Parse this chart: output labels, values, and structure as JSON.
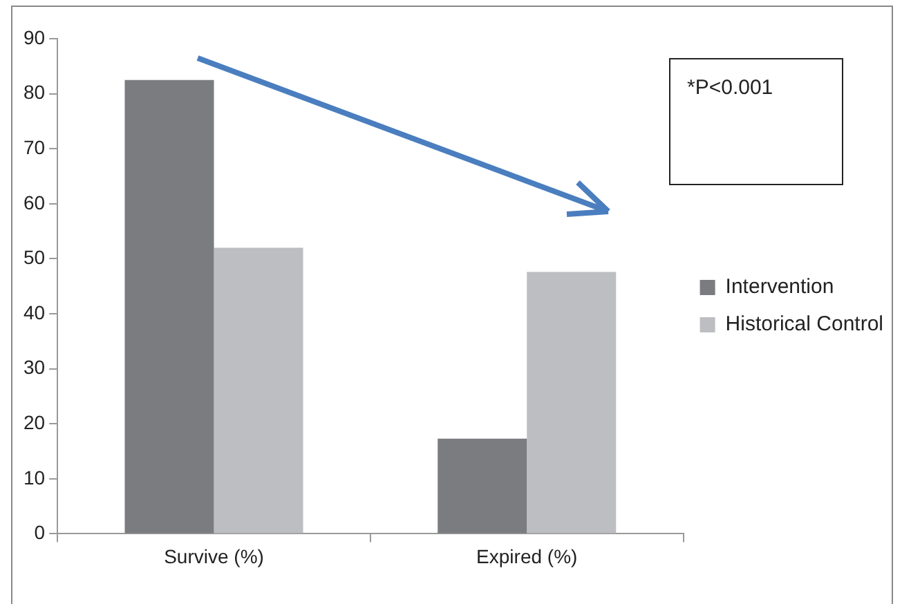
{
  "chart_data": {
    "type": "bar",
    "categories": [
      "Survive (%)",
      "Expired (%)"
    ],
    "series": [
      {
        "name": "Intervention",
        "color": "#7b7c80",
        "values": [
          82.5,
          17.3
        ]
      },
      {
        "name": "Historical Control",
        "color": "#bdbec2",
        "values": [
          52,
          47.6
        ]
      }
    ],
    "ylim": [
      0,
      90
    ],
    "yticks": [
      0,
      10,
      20,
      30,
      40,
      50,
      60,
      70,
      80,
      90
    ],
    "grid": false,
    "legend": "right",
    "annotations": [
      "*P<0.001"
    ]
  }
}
